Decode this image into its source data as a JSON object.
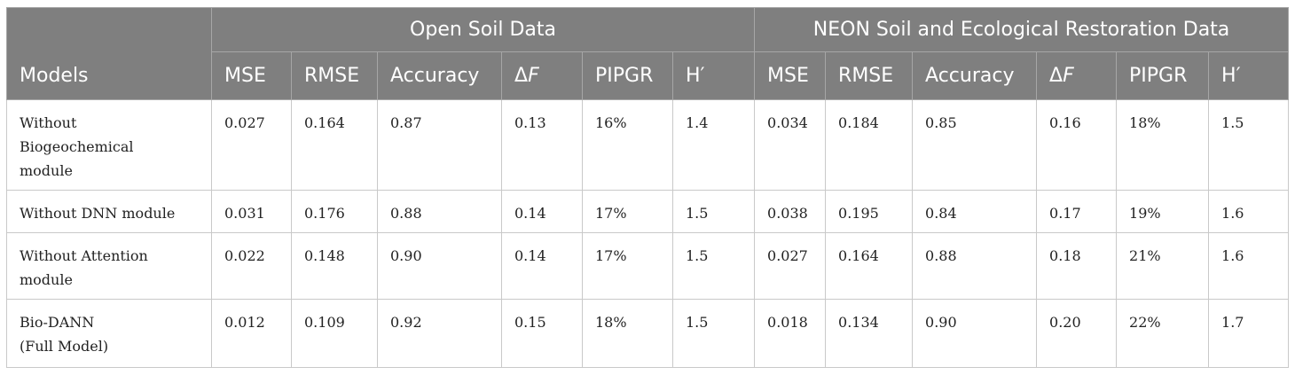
{
  "groups": {
    "models_label": "Models",
    "open_soil": "Open Soil Data",
    "neon": "NEON Soil and Ecological Restoration Data"
  },
  "columns": {
    "mse": "MSE",
    "rmse": "RMSE",
    "accuracy": "Accuracy",
    "delta": "Δ",
    "delta_var": "F",
    "pipgr": "PIPGR",
    "h": "H′"
  },
  "rows": [
    {
      "model_lines": [
        "Without",
        "Biogeochemical",
        "module"
      ],
      "open": [
        "0.027",
        "0.164",
        "0.87",
        "0.13",
        "16%",
        "1.4"
      ],
      "neon": [
        "0.034",
        "0.184",
        "0.85",
        "0.16",
        "18%",
        "1.5"
      ]
    },
    {
      "model_lines": [
        "Without DNN module"
      ],
      "open": [
        "0.031",
        "0.176",
        "0.88",
        "0.14",
        "17%",
        "1.5"
      ],
      "neon": [
        "0.038",
        "0.195",
        "0.84",
        "0.17",
        "19%",
        "1.6"
      ]
    },
    {
      "model_lines": [
        "Without Attention",
        "module"
      ],
      "open": [
        "0.022",
        "0.148",
        "0.90",
        "0.14",
        "17%",
        "1.5"
      ],
      "neon": [
        "0.027",
        "0.164",
        "0.88",
        "0.18",
        "21%",
        "1.6"
      ]
    },
    {
      "model_lines": [
        "Bio-DANN",
        "(Full Model)"
      ],
      "open": [
        "0.012",
        "0.109",
        "0.92",
        "0.15",
        "18%",
        "1.5"
      ],
      "neon": [
        "0.018",
        "0.134",
        "0.90",
        "0.20",
        "22%",
        "1.7"
      ]
    }
  ]
}
